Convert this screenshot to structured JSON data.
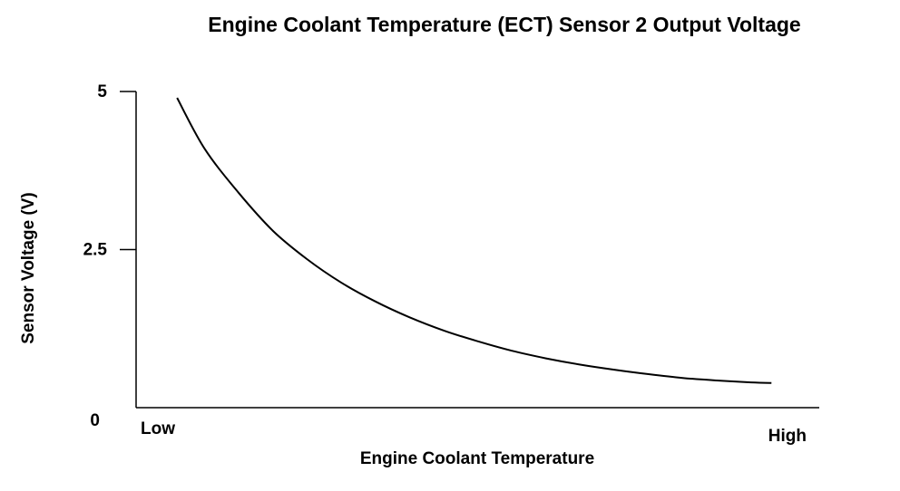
{
  "chart_data": {
    "type": "line",
    "title": "Engine Coolant Temperature (ECT) Sensor 2 Output Voltage",
    "xlabel": "Engine Coolant Temperature",
    "ylabel": "Sensor Voltage (V)",
    "x_tick_labels": [
      "Low",
      "High"
    ],
    "y_ticks": [
      {
        "value": 5,
        "label": "5"
      },
      {
        "value": 2.5,
        "label": "2.5"
      },
      {
        "value": 0,
        "label": "0"
      }
    ],
    "xlim": [
      0,
      1
    ],
    "ylim": [
      0,
      5
    ],
    "grid": false,
    "series": [
      {
        "x": [
          0.06,
          0.1,
          0.15,
          0.2,
          0.25,
          0.3,
          0.35,
          0.4,
          0.45,
          0.5,
          0.55,
          0.6,
          0.65,
          0.7,
          0.75,
          0.8,
          0.85,
          0.9,
          0.93
        ],
        "values": [
          4.9,
          4.1,
          3.4,
          2.8,
          2.35,
          1.98,
          1.68,
          1.43,
          1.22,
          1.05,
          0.9,
          0.78,
          0.68,
          0.6,
          0.53,
          0.47,
          0.43,
          0.4,
          0.39
        ]
      }
    ],
    "line_color": "#000000"
  }
}
